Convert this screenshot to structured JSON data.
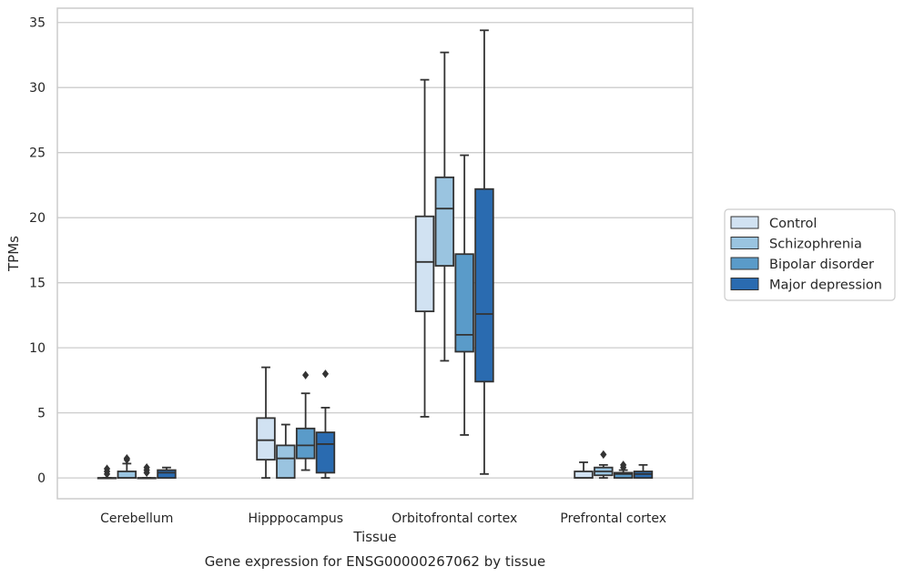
{
  "chart_data": {
    "type": "box",
    "title": "",
    "caption": "Gene expression for ENSG00000267062 by tissue",
    "xlabel": "Tissue",
    "ylabel": "TPMs",
    "ylim": [
      -1.6,
      36.1
    ],
    "yticks": [
      0,
      5,
      10,
      15,
      20,
      25,
      30,
      35
    ],
    "ytick_labels": [
      "0",
      "5",
      "10",
      "15",
      "20",
      "25",
      "30",
      "35"
    ],
    "grid": "horizontal",
    "legend_position": "right",
    "categories": [
      "Cerebellum",
      "Hipppocampus",
      "Orbitofrontal cortex",
      "Prefrontal cortex"
    ],
    "series": [
      {
        "name": "Control",
        "color": "#d1e2f2",
        "boxes": [
          {
            "whislo": 0,
            "q1": 0,
            "med": 0,
            "q3": 0,
            "whishi": 0,
            "fliers": [
              0.3,
              0.5,
              0.7
            ]
          },
          {
            "whislo": 0,
            "q1": 1.4,
            "med": 2.9,
            "q3": 4.6,
            "whishi": 8.5,
            "fliers": []
          },
          {
            "whislo": 4.7,
            "q1": 12.8,
            "med": 16.6,
            "q3": 20.1,
            "whishi": 30.6,
            "fliers": []
          },
          {
            "whislo": 0,
            "q1": 0,
            "med": 0,
            "q3": 0.5,
            "whishi": 1.2,
            "fliers": []
          }
        ]
      },
      {
        "name": "Schizophrenia",
        "color": "#9ac4e0",
        "boxes": [
          {
            "whislo": 0,
            "q1": 0,
            "med": 0,
            "q3": 0.5,
            "whishi": 1.1,
            "fliers": [
              1.4,
              1.5
            ]
          },
          {
            "whislo": 0,
            "q1": 0,
            "med": 1.5,
            "q3": 2.5,
            "whishi": 4.1,
            "fliers": []
          },
          {
            "whislo": 9.0,
            "q1": 16.3,
            "med": 20.7,
            "q3": 23.1,
            "whishi": 32.7,
            "fliers": []
          },
          {
            "whislo": 0,
            "q1": 0.2,
            "med": 0.5,
            "q3": 0.8,
            "whishi": 1.0,
            "fliers": [
              1.8
            ]
          }
        ]
      },
      {
        "name": "Bipolar disorder",
        "color": "#5a9bc9",
        "boxes": [
          {
            "whislo": 0,
            "q1": 0,
            "med": 0,
            "q3": 0,
            "whishi": 0,
            "fliers": [
              0.4,
              0.6,
              0.8
            ]
          },
          {
            "whislo": 0.6,
            "q1": 1.5,
            "med": 2.5,
            "q3": 3.8,
            "whishi": 6.5,
            "fliers": [
              7.9
            ]
          },
          {
            "whislo": 3.3,
            "q1": 9.7,
            "med": 11.0,
            "q3": 17.2,
            "whishi": 24.8,
            "fliers": []
          },
          {
            "whislo": 0,
            "q1": 0,
            "med": 0.3,
            "q3": 0.4,
            "whishi": 0.6,
            "fliers": [
              0.8,
              1.0
            ]
          }
        ]
      },
      {
        "name": "Major depression",
        "color": "#2a6bb0",
        "boxes": [
          {
            "whislo": 0,
            "q1": 0,
            "med": 0.4,
            "q3": 0.6,
            "whishi": 0.8,
            "fliers": []
          },
          {
            "whislo": 0,
            "q1": 0.4,
            "med": 2.6,
            "q3": 3.5,
            "whishi": 5.4,
            "fliers": [
              8.0
            ]
          },
          {
            "whislo": 0.3,
            "q1": 7.4,
            "med": 12.6,
            "q3": 22.2,
            "whishi": 34.4,
            "fliers": []
          },
          {
            "whislo": 0,
            "q1": 0,
            "med": 0.3,
            "q3": 0.5,
            "whishi": 1.0,
            "fliers": []
          }
        ]
      }
    ]
  }
}
